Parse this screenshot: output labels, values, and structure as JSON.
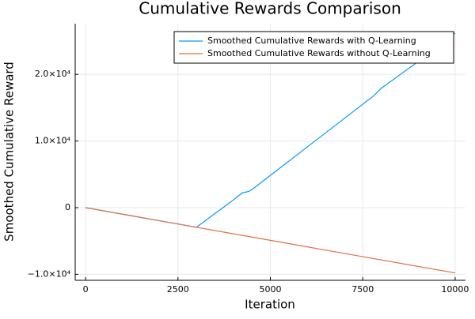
{
  "chart_data": {
    "type": "line",
    "title": "Cumulative Rewards Comparison",
    "x_label": "Iteration",
    "y_label": "Smoothed Cumulative Reward",
    "xlim": [
      -280,
      10280
    ],
    "xticks": [
      0,
      2500,
      5000,
      7500,
      10000
    ],
    "ylim": [
      -10900,
      27600
    ],
    "yticks": [
      {
        "value": -10000,
        "label": "−1.0×10⁴"
      },
      {
        "value": 0,
        "label": "0"
      },
      {
        "value": 10000,
        "label": "1.0×10⁴"
      },
      {
        "value": 20000,
        "label": "2.0×10⁴"
      }
    ],
    "grid": true,
    "legend": "top-right",
    "series": [
      {
        "name": "Smoothed Cumulative Rewards with Q-Learning",
        "color": "#009afa",
        "x": [
          0,
          500,
          1000,
          1500,
          2000,
          2500,
          3000,
          3500,
          4000,
          4250,
          4400,
          4500,
          5000,
          6000,
          7000,
          7800,
          8000,
          9000,
          10000
        ],
        "values": [
          0,
          -490,
          -980,
          -1470,
          -1960,
          -2450,
          -2940,
          -890,
          1160,
          2250,
          2400,
          2700,
          4840,
          9110,
          13380,
          16800,
          17900,
          21920,
          26200
        ]
      },
      {
        "name": "Smoothed Cumulative Rewards without Q-Learning",
        "color": "#e26f46",
        "x": [
          0,
          2500,
          5000,
          7500,
          10000
        ],
        "values": [
          0,
          -2450,
          -4900,
          -7350,
          -9800
        ]
      }
    ]
  }
}
